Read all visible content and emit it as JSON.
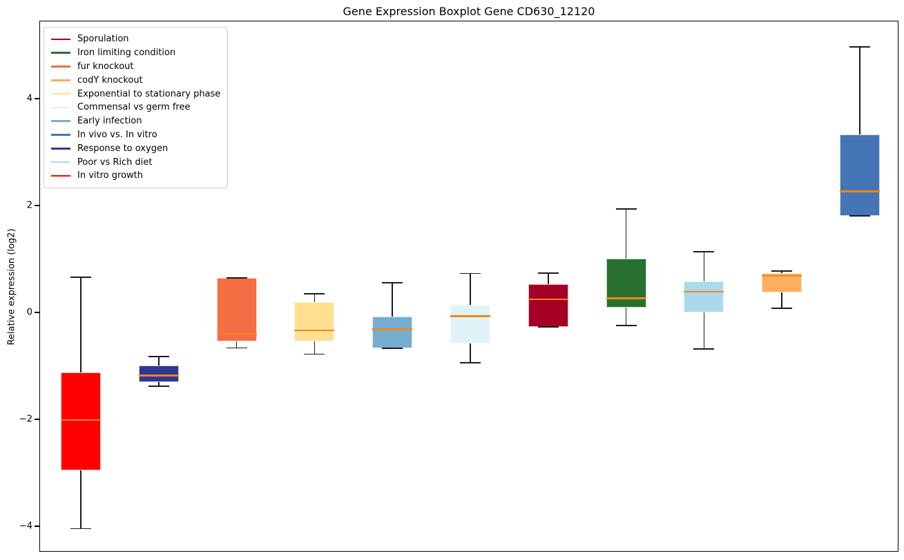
{
  "chart_data": {
    "type": "boxplot",
    "title": "Gene Expression Boxplot Gene CD630_12120",
    "ylabel": "Relative expression (log2)",
    "xlabel": "",
    "ylim": [
      -4.48,
      5.46
    ],
    "grid": false,
    "legend_position": "upper left",
    "median_color": "#f5861b",
    "whisker_color": "#1a1a1a",
    "yticks": [
      {
        "label": "4",
        "value": 4
      },
      {
        "label": "2",
        "value": 2
      },
      {
        "label": "0",
        "value": 0
      },
      {
        "label": "−2",
        "value": -2
      },
      {
        "label": "−4",
        "value": -4
      }
    ],
    "boxes": [
      {
        "label": "In vitro growth",
        "color": "#ff0000",
        "whisker_low": -4.03,
        "q1": -2.94,
        "median": -2.0,
        "q3": -1.11,
        "whisker_high": 0.67
      },
      {
        "label": "Response to oxygen",
        "color": "#313695",
        "whisker_low": -1.37,
        "q1": -1.29,
        "median": -1.17,
        "q3": -0.98,
        "whisker_high": -0.81
      },
      {
        "label": "fur knockout",
        "color": "#f46d43",
        "whisker_low": -0.65,
        "q1": -0.53,
        "median": -0.39,
        "q3": 0.66,
        "whisker_high": 0.66
      },
      {
        "label": "Exponential to stationary phase",
        "color": "#fee090",
        "whisker_low": -0.77,
        "q1": -0.53,
        "median": -0.32,
        "q3": 0.21,
        "whisker_high": 0.36
      },
      {
        "label": "Early infection",
        "color": "#74add1",
        "whisker_low": -0.66,
        "q1": -0.66,
        "median": -0.3,
        "q3": -0.06,
        "whisker_high": 0.57
      },
      {
        "label": "Commensal vs germ free",
        "color": "#e0f3f8",
        "whisker_low": -0.93,
        "q1": -0.57,
        "median": -0.06,
        "q3": 0.15,
        "whisker_high": 0.74
      },
      {
        "label": "Sporulation",
        "color": "#a50026",
        "whisker_low": -0.26,
        "q1": -0.26,
        "median": 0.26,
        "q3": 0.54,
        "whisker_high": 0.75
      },
      {
        "label": "Iron limiting condition",
        "color": "#27702e",
        "whisker_low": -0.23,
        "q1": 0.1,
        "median": 0.28,
        "q3": 1.02,
        "whisker_high": 1.95
      },
      {
        "label": "Poor vs Rich diet",
        "color": "#abd9e9",
        "whisker_low": -0.67,
        "q1": 0.01,
        "median": 0.4,
        "q3": 0.59,
        "whisker_high": 1.15
      },
      {
        "label": "codY knockout",
        "color": "#fdae61",
        "whisker_low": 0.09,
        "q1": 0.39,
        "median": 0.7,
        "q3": 0.75,
        "whisker_high": 0.79
      },
      {
        "label": "In vivo vs. In vitro",
        "color": "#4575b4",
        "whisker_low": 1.82,
        "q1": 1.82,
        "median": 2.28,
        "q3": 3.34,
        "whisker_high": 4.98
      }
    ],
    "legend": [
      {
        "label": "Sporulation",
        "color": "#a50026"
      },
      {
        "label": "Iron limiting condition",
        "color": "#27702e"
      },
      {
        "label": "fur knockout",
        "color": "#f46d43"
      },
      {
        "label": "codY knockout",
        "color": "#fdae61"
      },
      {
        "label": "Exponential to stationary phase",
        "color": "#fee090"
      },
      {
        "label": "Commensal vs germ free",
        "color": "#e0f3f8"
      },
      {
        "label": "Early infection",
        "color": "#74add1"
      },
      {
        "label": "In vivo vs. In vitro",
        "color": "#4575b4"
      },
      {
        "label": "Response to oxygen",
        "color": "#313695"
      },
      {
        "label": "Poor vs Rich diet",
        "color": "#abd9e9"
      },
      {
        "label": "In vitro growth",
        "color": "#ff0000"
      }
    ]
  }
}
